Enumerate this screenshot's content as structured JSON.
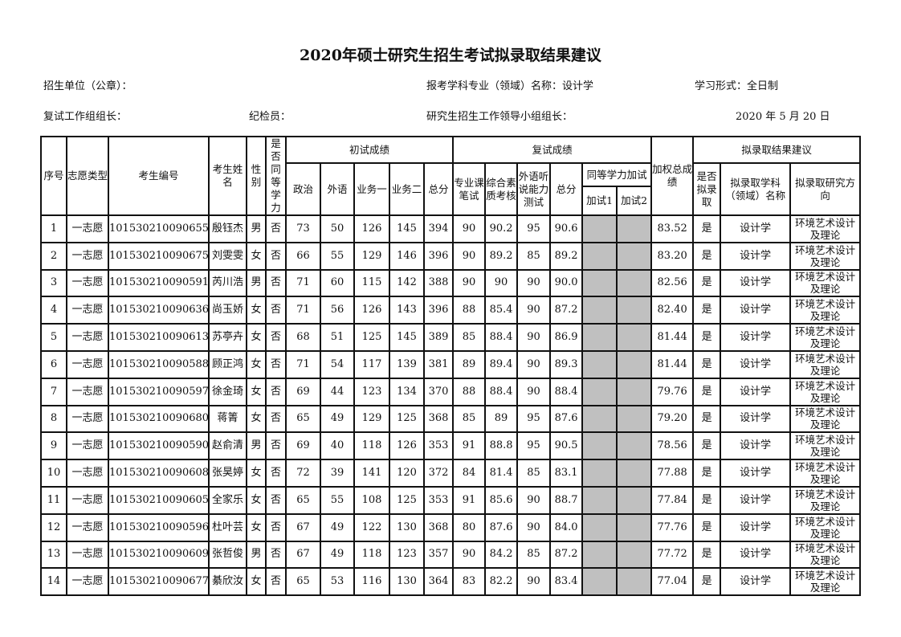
{
  "title": "2020年硕士研究生招生考试拟录取结果建议",
  "meta": {
    "unit": "招生单位（公章）：",
    "major": "报考学科专业（领域）名称：设计学",
    "study_mode": "学习形式：全日制",
    "leader": "复试工作组组长：",
    "inspector": "纪检员：",
    "group_leader": "研究生招生工作领导小组组长：",
    "date": "2020 年 5 月 20 日"
  },
  "headers": {
    "seq": "序号",
    "choice": "志愿类型",
    "exam_id": "考生编号",
    "name": "考生姓名",
    "gender": "性别",
    "equiv": "是否同等学力",
    "initial": "初试成绩",
    "politics": "政治",
    "foreign": "外语",
    "course1": "业务一",
    "course2": "业务二",
    "initial_total": "总分",
    "retest": "复试成绩",
    "written": "专业课笔试",
    "quality": "综合素质考核",
    "listening": "外语听说能力测试",
    "retest_total": "总分",
    "extra": "同等学力加试",
    "extra1": "加试1",
    "extra2": "加试2",
    "weighted": "加权总成绩",
    "result": "拟录取结果建议",
    "admit": "是否拟录取",
    "admit_major": "拟录取学科（领域）名称",
    "admit_direction": "拟录取研究方向"
  },
  "rows": [
    {
      "seq": "1",
      "choice": "一志愿",
      "id": "10153021009065‌5",
      "name": "殷钰杰",
      "gender": "男",
      "equiv": "否",
      "politics": "73",
      "foreign": "50",
      "c1": "126",
      "c2": "145",
      "total": "394",
      "written": "90",
      "quality": "90.2",
      "listening": "95",
      "rtotal": "90.6",
      "weighted": "83.52",
      "admit": "是",
      "major": "设计学",
      "direction": "环境艺术设计及理论"
    },
    {
      "seq": "2",
      "choice": "一志愿",
      "id": "101530210090675",
      "name": "刘雯雯",
      "gender": "女",
      "equiv": "否",
      "politics": "66",
      "foreign": "55",
      "c1": "129",
      "c2": "146",
      "total": "396",
      "written": "90",
      "quality": "89.2",
      "listening": "85",
      "rtotal": "89.2",
      "weighted": "83.20",
      "admit": "是",
      "major": "设计学",
      "direction": "环境艺术设计及理论"
    },
    {
      "seq": "3",
      "choice": "一志愿",
      "id": "101530210090591",
      "name": "芮川浩",
      "gender": "男",
      "equiv": "否",
      "politics": "71",
      "foreign": "60",
      "c1": "115",
      "c2": "142",
      "total": "388",
      "written": "90",
      "quality": "90",
      "listening": "90",
      "rtotal": "90.0",
      "weighted": "82.56",
      "admit": "是",
      "major": "设计学",
      "direction": "环境艺术设计及理论"
    },
    {
      "seq": "4",
      "choice": "一志愿",
      "id": "101530210090636",
      "name": "尚玉娇",
      "gender": "女",
      "equiv": "否",
      "politics": "71",
      "foreign": "56",
      "c1": "126",
      "c2": "143",
      "total": "396",
      "written": "88",
      "quality": "85.4",
      "listening": "90",
      "rtotal": "87.2",
      "weighted": "82.40",
      "admit": "是",
      "major": "设计学",
      "direction": "环境艺术设计及理论"
    },
    {
      "seq": "5",
      "choice": "一志愿",
      "id": "101530210090613",
      "name": "苏亭卉",
      "gender": "女",
      "equiv": "否",
      "politics": "68",
      "foreign": "51",
      "c1": "125",
      "c2": "145",
      "total": "389",
      "written": "85",
      "quality": "88.4",
      "listening": "90",
      "rtotal": "86.9",
      "weighted": "81.44",
      "admit": "是",
      "major": "设计学",
      "direction": "环境艺术设计及理论"
    },
    {
      "seq": "6",
      "choice": "一志愿",
      "id": "101530210090588",
      "name": "顾正鸿",
      "gender": "女",
      "equiv": "否",
      "politics": "71",
      "foreign": "54",
      "c1": "117",
      "c2": "139",
      "total": "381",
      "written": "89",
      "quality": "89.4",
      "listening": "90",
      "rtotal": "89.3",
      "weighted": "81.44",
      "admit": "是",
      "major": "设计学",
      "direction": "环境艺术设计及理论"
    },
    {
      "seq": "7",
      "choice": "一志愿",
      "id": "101530210090597",
      "name": "徐金琦",
      "gender": "女",
      "equiv": "否",
      "politics": "69",
      "foreign": "44",
      "c1": "123",
      "c2": "134",
      "total": "370",
      "written": "88",
      "quality": "88.4",
      "listening": "90",
      "rtotal": "88.4",
      "weighted": "79.76",
      "admit": "是",
      "major": "设计学",
      "direction": "环境艺术设计及理论"
    },
    {
      "seq": "8",
      "choice": "一志愿",
      "id": "101530210090680",
      "name": "蒋箐",
      "gender": "女",
      "equiv": "否",
      "politics": "65",
      "foreign": "49",
      "c1": "129",
      "c2": "125",
      "total": "368",
      "written": "85",
      "quality": "89",
      "listening": "95",
      "rtotal": "87.6",
      "weighted": "79.20",
      "admit": "是",
      "major": "设计学",
      "direction": "环境艺术设计及理论"
    },
    {
      "seq": "9",
      "choice": "一志愿",
      "id": "101530210090590",
      "name": "赵俞清",
      "gender": "男",
      "equiv": "否",
      "politics": "69",
      "foreign": "40",
      "c1": "118",
      "c2": "126",
      "total": "353",
      "written": "91",
      "quality": "88.8",
      "listening": "95",
      "rtotal": "90.5",
      "weighted": "78.56",
      "admit": "是",
      "major": "设计学",
      "direction": "环境艺术设计及理论"
    },
    {
      "seq": "10",
      "choice": "一志愿",
      "id": "101530210090608",
      "name": "张昊婷",
      "gender": "女",
      "equiv": "否",
      "politics": "72",
      "foreign": "39",
      "c1": "141",
      "c2": "120",
      "total": "372",
      "written": "84",
      "quality": "81.4",
      "listening": "85",
      "rtotal": "83.1",
      "weighted": "77.88",
      "admit": "是",
      "major": "设计学",
      "direction": "环境艺术设计及理论"
    },
    {
      "seq": "11",
      "choice": "一志愿",
      "id": "101530210090605",
      "name": "全家乐",
      "gender": "女",
      "equiv": "否",
      "politics": "65",
      "foreign": "55",
      "c1": "108",
      "c2": "125",
      "total": "353",
      "written": "91",
      "quality": "85.6",
      "listening": "90",
      "rtotal": "88.7",
      "weighted": "77.84",
      "admit": "是",
      "major": "设计学",
      "direction": "环境艺术设计及理论"
    },
    {
      "seq": "12",
      "choice": "一志愿",
      "id": "101530210090596",
      "name": "杜叶芸",
      "gender": "女",
      "equiv": "否",
      "politics": "67",
      "foreign": "49",
      "c1": "122",
      "c2": "130",
      "total": "368",
      "written": "80",
      "quality": "87.6",
      "listening": "90",
      "rtotal": "84.0",
      "weighted": "77.76",
      "admit": "是",
      "major": "设计学",
      "direction": "环境艺术设计及理论"
    },
    {
      "seq": "13",
      "choice": "一志愿",
      "id": "101530210090609",
      "name": "张哲俊",
      "gender": "男",
      "equiv": "否",
      "politics": "67",
      "foreign": "49",
      "c1": "118",
      "c2": "123",
      "total": "357",
      "written": "90",
      "quality": "84.2",
      "listening": "85",
      "rtotal": "87.2",
      "weighted": "77.72",
      "admit": "是",
      "major": "设计学",
      "direction": "环境艺术设计及理论"
    },
    {
      "seq": "14",
      "choice": "一志愿",
      "id": "101530210090677",
      "name": "綦欣汝",
      "gender": "女",
      "equiv": "否",
      "politics": "65",
      "foreign": "53",
      "c1": "116",
      "c2": "130",
      "total": "364",
      "written": "83",
      "quality": "82.2",
      "listening": "90",
      "rtotal": "83.4",
      "weighted": "77.04",
      "admit": "是",
      "major": "设计学",
      "direction": "环境艺术设计及理论"
    }
  ]
}
